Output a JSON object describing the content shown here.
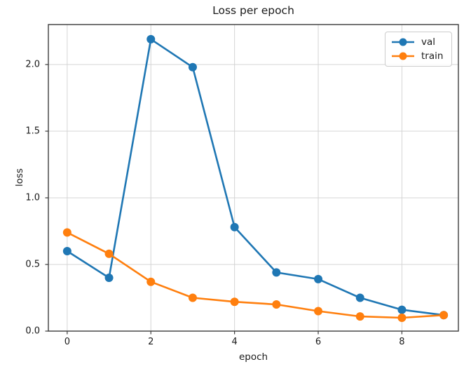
{
  "figure": {
    "title": "Loss per epoch"
  },
  "chart_data": {
    "type": "line",
    "title": "Loss per epoch",
    "xlabel": "epoch",
    "ylabel": "loss",
    "x": [
      0,
      1,
      2,
      3,
      4,
      5,
      6,
      7,
      8,
      9
    ],
    "series": [
      {
        "name": "val",
        "color": "#1f77b4",
        "values": [
          0.6,
          0.4,
          2.19,
          1.98,
          0.78,
          0.44,
          0.39,
          0.25,
          0.16,
          0.12
        ]
      },
      {
        "name": "train",
        "color": "#ff7f0e",
        "values": [
          0.74,
          0.58,
          0.37,
          0.25,
          0.22,
          0.2,
          0.15,
          0.11,
          0.1,
          0.12
        ]
      }
    ],
    "xlim": [
      -0.45,
      9.35
    ],
    "ylim": [
      0,
      2.3
    ],
    "xticks": {
      "values": [
        0,
        2,
        4,
        6,
        8
      ],
      "labels": [
        "0",
        "2",
        "4",
        "6",
        "8"
      ]
    },
    "yticks": {
      "values": [
        0,
        0.5,
        1.0,
        1.5,
        2.0
      ],
      "labels": [
        "0.0",
        "0.5",
        "1.0",
        "1.5",
        "2.0"
      ]
    },
    "grid": true,
    "legend": {
      "position": "upper right",
      "entries": [
        "val",
        "train"
      ]
    },
    "marker": "circle",
    "colors": {
      "grid": "#d4d4d4",
      "spine": "#3c3c3c",
      "text": "#1a1a1a"
    }
  }
}
